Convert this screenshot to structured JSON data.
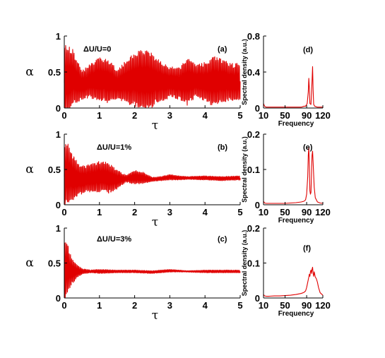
{
  "chart_data": [
    {
      "id": "a",
      "type": "line",
      "panel_label": "(a)",
      "annotation": "ΔU/U=0",
      "xlabel": "τ",
      "ylabel": "α",
      "xlim": [
        0,
        5
      ],
      "ylim": [
        0,
        1
      ],
      "xticks": [
        "0",
        "1",
        "2",
        "3",
        "4",
        "5"
      ],
      "yticks": [
        "0",
        "0.5",
        "1"
      ],
      "ytick_values": [
        0,
        0.5,
        1
      ],
      "series": [
        {
          "color": "#e00000",
          "x": [
            0,
            0.25,
            0.5,
            0.75,
            1.0,
            1.25,
            1.5,
            1.75,
            2.0,
            2.25,
            2.5,
            2.75,
            3.0,
            3.25,
            3.5,
            3.75,
            4.0,
            4.25,
            4.5,
            4.75,
            5.0
          ],
          "center": [
            0.35,
            0.42,
            0.32,
            0.38,
            0.4,
            0.38,
            0.33,
            0.36,
            0.4,
            0.39,
            0.38,
            0.37,
            0.36,
            0.34,
            0.37,
            0.38,
            0.36,
            0.37,
            0.38,
            0.36,
            0.37
          ],
          "amplitude": [
            0.55,
            0.4,
            0.2,
            0.25,
            0.3,
            0.32,
            0.2,
            0.3,
            0.38,
            0.44,
            0.38,
            0.28,
            0.22,
            0.22,
            0.34,
            0.22,
            0.28,
            0.35,
            0.3,
            0.26,
            0.26
          ]
        }
      ]
    },
    {
      "id": "b",
      "type": "line",
      "panel_label": "(b)",
      "annotation": "ΔU/U=1%",
      "xlabel": "τ",
      "ylabel": "α",
      "xlim": [
        0,
        5
      ],
      "ylim": [
        0,
        1
      ],
      "xticks": [
        "0",
        "1",
        "2",
        "3",
        "4",
        "5"
      ],
      "yticks": [
        "0",
        "0.5",
        "1"
      ],
      "ytick_values": [
        0,
        0.5,
        1
      ],
      "series": [
        {
          "color": "#e00000",
          "x": [
            0,
            0.1,
            0.25,
            0.5,
            0.75,
            1.0,
            1.25,
            1.5,
            1.75,
            2.0,
            2.25,
            2.5,
            2.75,
            3.0,
            3.25,
            3.5,
            4.0,
            4.5,
            5.0
          ],
          "center": [
            0.4,
            0.45,
            0.38,
            0.35,
            0.38,
            0.4,
            0.38,
            0.36,
            0.37,
            0.39,
            0.38,
            0.36,
            0.37,
            0.39,
            0.38,
            0.38,
            0.38,
            0.37,
            0.38
          ],
          "amplitude": [
            0.48,
            0.42,
            0.32,
            0.2,
            0.2,
            0.22,
            0.22,
            0.14,
            0.05,
            0.1,
            0.08,
            0.03,
            0.03,
            0.04,
            0.03,
            0.02,
            0.03,
            0.03,
            0.03
          ]
        }
      ]
    },
    {
      "id": "c",
      "type": "line",
      "panel_label": "(c)",
      "annotation": "ΔU/U=3%",
      "xlabel": "τ",
      "ylabel": "α",
      "xlim": [
        0,
        5
      ],
      "ylim": [
        0,
        1
      ],
      "xticks": [
        "0",
        "1",
        "2",
        "3",
        "4",
        "5"
      ],
      "yticks": [
        "0",
        "0.5",
        "1"
      ],
      "ytick_values": [
        0,
        0.5,
        1
      ],
      "series": [
        {
          "color": "#e00000",
          "x": [
            0,
            0.1,
            0.2,
            0.35,
            0.5,
            0.75,
            1.0,
            1.5,
            2.0,
            2.5,
            3.0,
            3.5,
            4.0,
            4.5,
            5.0
          ],
          "center": [
            0.4,
            0.42,
            0.38,
            0.38,
            0.38,
            0.38,
            0.38,
            0.38,
            0.38,
            0.37,
            0.39,
            0.38,
            0.38,
            0.38,
            0.38
          ],
          "amplitude": [
            0.45,
            0.35,
            0.2,
            0.1,
            0.04,
            0.02,
            0.03,
            0.02,
            0.02,
            0.02,
            0.02,
            0.01,
            0.02,
            0.02,
            0.02
          ]
        }
      ]
    },
    {
      "id": "d",
      "type": "line",
      "panel_label": "(d)",
      "xlabel": "Frequency",
      "ylabel": "Spectral density (a.u.)",
      "xlim": [
        10,
        120
      ],
      "ylim": [
        0,
        0.8
      ],
      "xticks": [
        "10",
        "50",
        "90",
        "120"
      ],
      "xtick_values": [
        10,
        50,
        90,
        120
      ],
      "yticks": [
        "0",
        "0.4",
        "0.8"
      ],
      "ytick_values": [
        0,
        0.4,
        0.8
      ],
      "series": [
        {
          "color": "#e00000",
          "x": [
            10,
            12,
            15,
            20,
            30,
            40,
            50,
            60,
            70,
            80,
            85,
            88,
            91,
            93,
            94,
            95,
            96,
            98,
            100,
            101,
            102,
            103,
            105,
            110,
            115,
            120
          ],
          "y": [
            0.05,
            0.02,
            0.01,
            0.01,
            0.01,
            0.01,
            0.01,
            0.01,
            0.01,
            0.01,
            0.02,
            0.02,
            0.05,
            0.18,
            0.33,
            0.22,
            0.05,
            0.04,
            0.3,
            0.46,
            0.2,
            0.04,
            0.02,
            0.01,
            0.01,
            0.01
          ]
        }
      ]
    },
    {
      "id": "e",
      "type": "line",
      "panel_label": "(e)",
      "xlabel": "Frequency",
      "ylabel": "Spectral density (a.u.)",
      "xlim": [
        10,
        120
      ],
      "ylim": [
        0,
        0.2
      ],
      "xticks": [
        "10",
        "50",
        "90",
        "120"
      ],
      "xtick_values": [
        10,
        50,
        90,
        120
      ],
      "yticks": [
        "0",
        "0.1",
        "0.2"
      ],
      "ytick_values": [
        0,
        0.1,
        0.2
      ],
      "series": [
        {
          "color": "#e00000",
          "x": [
            10,
            12,
            15,
            20,
            30,
            40,
            50,
            60,
            70,
            80,
            85,
            88,
            90,
            92,
            93,
            94,
            95,
            96,
            97,
            98,
            99,
            100,
            101,
            102,
            104,
            106,
            110,
            115,
            120
          ],
          "y": [
            0.01,
            0.005,
            0.004,
            0.004,
            0.004,
            0.004,
            0.004,
            0.005,
            0.006,
            0.008,
            0.01,
            0.014,
            0.03,
            0.08,
            0.14,
            0.162,
            0.11,
            0.04,
            0.03,
            0.035,
            0.09,
            0.14,
            0.152,
            0.12,
            0.05,
            0.02,
            0.008,
            0.005,
            0.004
          ]
        }
      ]
    },
    {
      "id": "f",
      "type": "line",
      "panel_label": "(f)",
      "xlabel": "Frequency",
      "ylabel": "Spectral density (a.u.)",
      "xlim": [
        10,
        120
      ],
      "ylim": [
        0,
        0.2
      ],
      "xticks": [
        "10",
        "50",
        "90",
        "120"
      ],
      "xtick_values": [
        10,
        50,
        90,
        120
      ],
      "yticks": [
        "0",
        "0.1",
        "0.2"
      ],
      "ytick_values": [
        0,
        0.1,
        0.2
      ],
      "series": [
        {
          "color": "#e00000",
          "x": [
            10,
            12,
            15,
            20,
            30,
            40,
            50,
            60,
            70,
            80,
            85,
            88,
            90,
            92,
            94,
            95,
            96,
            97,
            98,
            99,
            100,
            101,
            102,
            103,
            104,
            106,
            108,
            110,
            112,
            115,
            120
          ],
          "y": [
            0.01,
            0.006,
            0.005,
            0.005,
            0.006,
            0.006,
            0.007,
            0.008,
            0.01,
            0.013,
            0.016,
            0.02,
            0.03,
            0.045,
            0.06,
            0.068,
            0.062,
            0.075,
            0.08,
            0.07,
            0.082,
            0.088,
            0.07,
            0.062,
            0.075,
            0.06,
            0.055,
            0.045,
            0.03,
            0.015,
            0.008
          ]
        }
      ]
    }
  ]
}
